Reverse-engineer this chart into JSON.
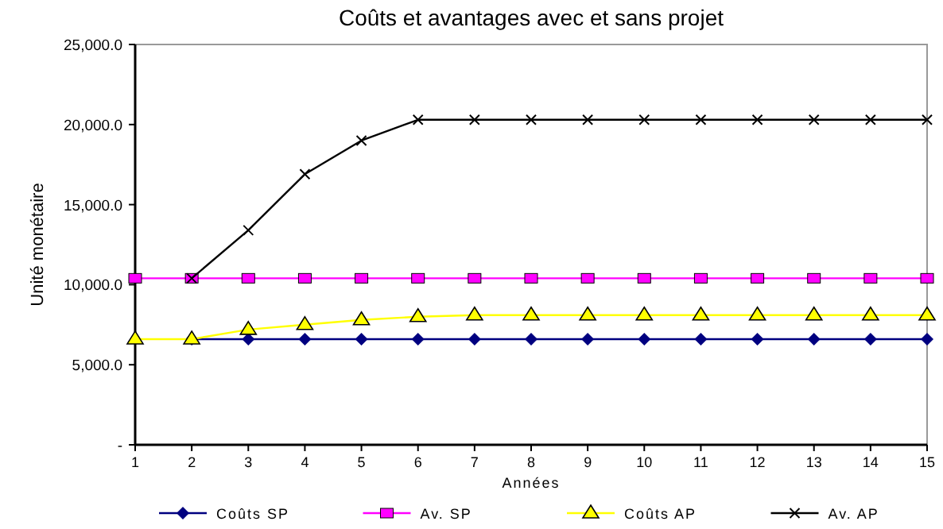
{
  "chart_data": {
    "type": "line",
    "title": "Coûts et avantages avec et sans projet",
    "xlabel": "Années",
    "ylabel": "Unité monétaire",
    "x": [
      1,
      2,
      3,
      4,
      5,
      6,
      7,
      8,
      9,
      10,
      11,
      12,
      13,
      14,
      15
    ],
    "xlim": [
      1,
      15
    ],
    "xticks": [
      1,
      2,
      3,
      4,
      5,
      6,
      7,
      8,
      9,
      10,
      11,
      12,
      13,
      14,
      15
    ],
    "ylim": [
      0,
      25000
    ],
    "yticks": [
      {
        "value": 0,
        "label": "-"
      },
      {
        "value": 5000,
        "label": "5,000.0"
      },
      {
        "value": 10000,
        "label": "10,000.0"
      },
      {
        "value": 15000,
        "label": "15,000.0"
      },
      {
        "value": 20000,
        "label": "20,000.0"
      },
      {
        "value": 25000,
        "label": "25,000.0"
      }
    ],
    "grid": false,
    "legend": "bottom",
    "series": [
      {
        "name": "Coûts SP",
        "color": "#000080",
        "marker": "diamond",
        "values": [
          null,
          6600,
          6600,
          6600,
          6600,
          6600,
          6600,
          6600,
          6600,
          6600,
          6600,
          6600,
          6600,
          6600,
          6600
        ]
      },
      {
        "name": "Av. SP",
        "color": "#ff00ff",
        "marker": "square",
        "values": [
          10400,
          10400,
          10400,
          10400,
          10400,
          10400,
          10400,
          10400,
          10400,
          10400,
          10400,
          10400,
          10400,
          10400,
          10400
        ]
      },
      {
        "name": "Coûts AP",
        "color": "#ffff00",
        "marker": "triangle",
        "values": [
          6600,
          6600,
          7200,
          7500,
          7800,
          8000,
          8100,
          8100,
          8100,
          8100,
          8100,
          8100,
          8100,
          8100,
          8100
        ]
      },
      {
        "name": "Av. AP",
        "color": "#000000",
        "marker": "cross",
        "values": [
          null,
          10400,
          13400,
          16900,
          19000,
          20300,
          20300,
          20300,
          20300,
          20300,
          20300,
          20300,
          20300,
          20300,
          20300
        ]
      }
    ]
  }
}
